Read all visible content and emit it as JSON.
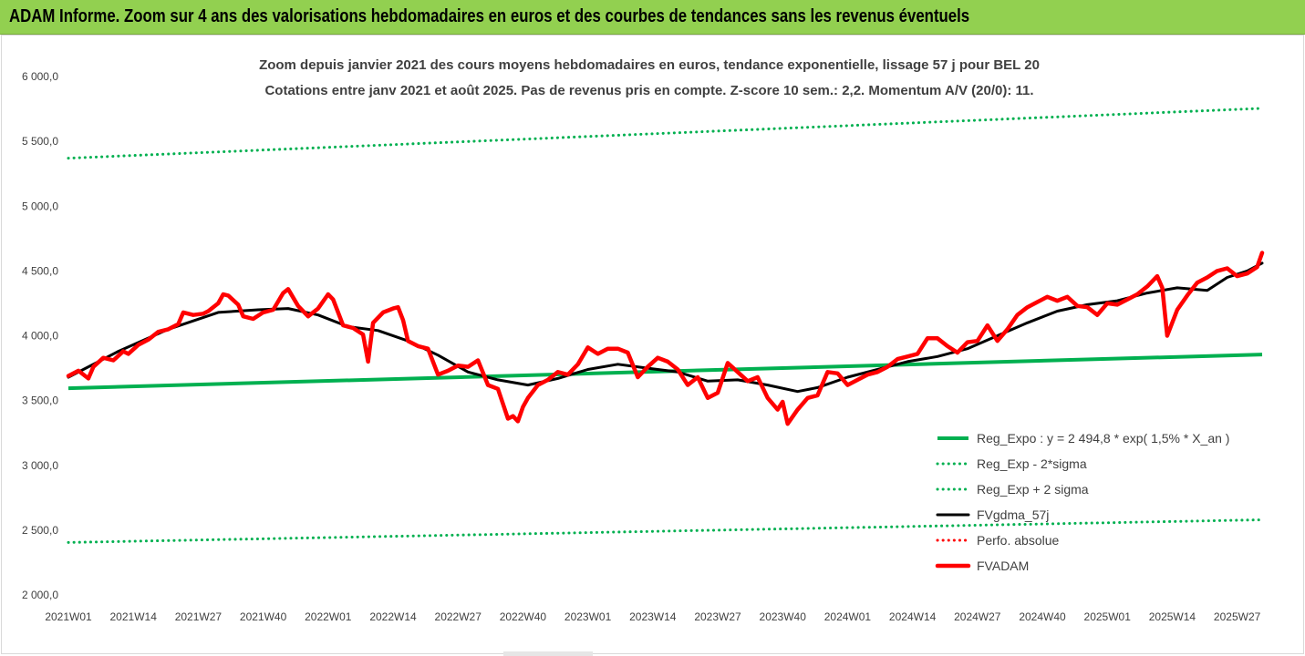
{
  "header": {
    "title": "ADAM Informe. Zoom sur 4 ans des valorisations hebdomadaires en euros et des courbes de tendances sans les revenus éventuels"
  },
  "colors": {
    "header_bg": "#92d050",
    "reg_expo": "#00b050",
    "fvgdma": "#000000",
    "perfo": "#ff0000",
    "fvadam": "#ff0000"
  },
  "chart_data": {
    "type": "line",
    "title": "Zoom depuis janvier 2021 des cours moyens hebdomadaires en euros, tendance exponentielle, lissage 57 j pour BEL 20",
    "subtitle": "Cotations entre janv 2021 et août 2025.  Pas de revenus pris en compte. Z-score 10 sem.: 2,2. Momentum A/V (20/0): 11.",
    "ylim": [
      2000,
      6000
    ],
    "y_ticks": [
      "2 000,0",
      "2 500,0",
      "3 000,0",
      "3 500,0",
      "4 000,0",
      "4 500,0",
      "5 000,0",
      "5 500,0",
      "6 000,0"
    ],
    "y_tick_values": [
      2000,
      2500,
      3000,
      3500,
      4000,
      4500,
      5000,
      5500,
      6000
    ],
    "x_ticks": [
      "2021W01",
      "2021W14",
      "2021W27",
      "2021W40",
      "2022W01",
      "2022W14",
      "2022W27",
      "2022W40",
      "2023W01",
      "2023W14",
      "2023W27",
      "2023W40",
      "2024W01",
      "2024W14",
      "2024W27",
      "2024W40",
      "2025W01",
      "2025W14",
      "2025W27"
    ],
    "x_tick_index": [
      0,
      13,
      26,
      39,
      52,
      65,
      78,
      91,
      104,
      117,
      130,
      143,
      156,
      169,
      182,
      195,
      208,
      221,
      234
    ],
    "x_count": 240,
    "legend_position": "bottom-right",
    "series": [
      {
        "name": "Reg_Expo : y = 2 494,8 * exp( 1,5% *  X_an )",
        "style": "solid-green-thick",
        "x": [
          0,
          239
        ],
        "values": [
          3595,
          3855
        ]
      },
      {
        "name": "Reg_Exp - 2*sigma",
        "style": "dotted-green",
        "x": [
          0,
          239
        ],
        "values": [
          2405,
          2580
        ]
      },
      {
        "name": "Reg_Exp + 2 sigma",
        "style": "dotted-green",
        "x": [
          0,
          239
        ],
        "values": [
          5370,
          5755
        ]
      },
      {
        "name": "FVgdma_57j",
        "style": "solid-black",
        "x": [
          0,
          10,
          20,
          30,
          38,
          44,
          50,
          56,
          62,
          68,
          74,
          80,
          86,
          92,
          98,
          104,
          110,
          116,
          122,
          128,
          134,
          140,
          146,
          150,
          156,
          162,
          168,
          174,
          180,
          186,
          192,
          198,
          204,
          210,
          216,
          222,
          228,
          232,
          236,
          239
        ],
        "values": [
          3680,
          3880,
          4050,
          4180,
          4200,
          4210,
          4160,
          4070,
          4040,
          3960,
          3850,
          3720,
          3660,
          3620,
          3670,
          3740,
          3780,
          3750,
          3720,
          3650,
          3660,
          3620,
          3570,
          3600,
          3680,
          3740,
          3800,
          3840,
          3900,
          4000,
          4100,
          4190,
          4240,
          4270,
          4330,
          4370,
          4350,
          4450,
          4500,
          4560
        ]
      },
      {
        "name": "Perfo. absolue",
        "style": "dotted-red",
        "x": [],
        "values": []
      },
      {
        "name": "FVADAM",
        "style": "solid-red-thick",
        "x": [
          0,
          2,
          4,
          5,
          7,
          9,
          11,
          12,
          14,
          16,
          18,
          20,
          22,
          23,
          25,
          27,
          28,
          30,
          31,
          32,
          34,
          35,
          37,
          39,
          41,
          43,
          44,
          46,
          48,
          50,
          52,
          53,
          55,
          57,
          59,
          60,
          61,
          63,
          65,
          66,
          67,
          68,
          70,
          72,
          74,
          76,
          78,
          80,
          82,
          84,
          86,
          88,
          89,
          90,
          91,
          92,
          94,
          96,
          98,
          100,
          102,
          104,
          106,
          108,
          110,
          112,
          114,
          116,
          118,
          120,
          122,
          124,
          126,
          128,
          130,
          132,
          134,
          136,
          138,
          140,
          142,
          143,
          144,
          146,
          148,
          150,
          152,
          154,
          156,
          158,
          160,
          162,
          164,
          166,
          168,
          170,
          172,
          174,
          176,
          178,
          180,
          182,
          184,
          186,
          188,
          190,
          192,
          194,
          196,
          198,
          200,
          202,
          204,
          206,
          208,
          210,
          212,
          214,
          216,
          218,
          219,
          220,
          222,
          224,
          226,
          228,
          230,
          232,
          234,
          236,
          238,
          239
        ],
        "values": [
          3690,
          3730,
          3670,
          3760,
          3830,
          3810,
          3880,
          3860,
          3930,
          3970,
          4030,
          4050,
          4090,
          4180,
          4160,
          4170,
          4190,
          4250,
          4320,
          4310,
          4240,
          4150,
          4130,
          4180,
          4200,
          4330,
          4360,
          4230,
          4150,
          4210,
          4320,
          4280,
          4080,
          4060,
          4010,
          3800,
          4100,
          4180,
          4210,
          4220,
          4120,
          3960,
          3920,
          3900,
          3700,
          3730,
          3770,
          3760,
          3810,
          3620,
          3590,
          3360,
          3380,
          3340,
          3450,
          3520,
          3620,
          3660,
          3720,
          3700,
          3780,
          3910,
          3860,
          3900,
          3900,
          3870,
          3680,
          3760,
          3830,
          3800,
          3740,
          3620,
          3680,
          3520,
          3560,
          3790,
          3720,
          3650,
          3680,
          3520,
          3430,
          3490,
          3320,
          3430,
          3520,
          3540,
          3720,
          3710,
          3620,
          3660,
          3700,
          3720,
          3760,
          3820,
          3840,
          3860,
          3980,
          3980,
          3920,
          3870,
          3950,
          3960,
          4080,
          3960,
          4050,
          4160,
          4220,
          4260,
          4300,
          4270,
          4300,
          4230,
          4220,
          4160,
          4250,
          4240,
          4280,
          4320,
          4380,
          4460,
          4370,
          4000,
          4200,
          4310,
          4410,
          4450,
          4500,
          4520,
          4460,
          4480,
          4530,
          4640
        ]
      }
    ]
  }
}
